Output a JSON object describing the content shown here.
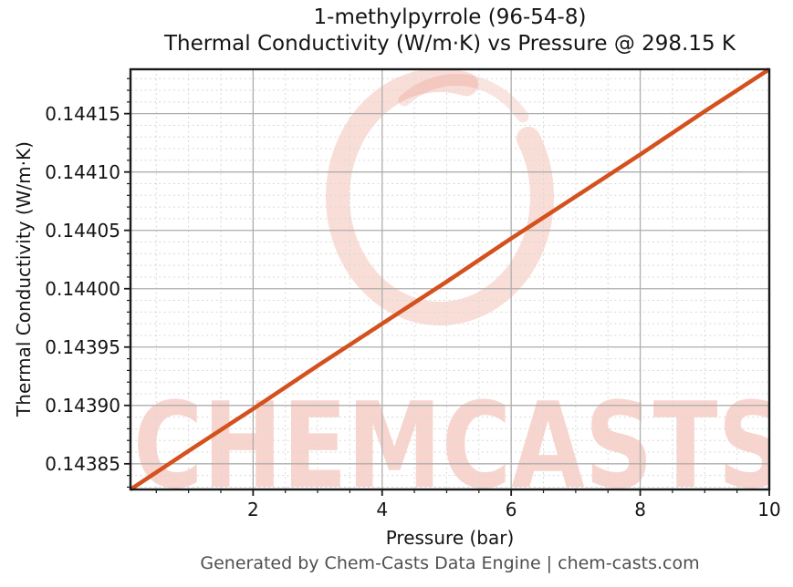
{
  "header": {
    "title_line1": "1-methylpyrrole (96-54-8)",
    "title_line2": "Thermal Conductivity (W/m·K) vs Pressure @ 298.15 K"
  },
  "footer": {
    "attribution": "Generated by Chem-Casts Data Engine | chem-casts.com"
  },
  "watermark": {
    "text": "CHEMCASTS",
    "logo": "brush-circle-icon",
    "color": "#f7d3c9"
  },
  "chart_data": {
    "type": "line",
    "title": "1-methylpyrrole (96-54-8)",
    "subtitle": "Thermal Conductivity (W/m·K) vs Pressure @ 298.15 K",
    "substance": "1-methylpyrrole",
    "cas_number": "96-54-8",
    "temperature_K": 298.15,
    "xlabel": "Pressure (bar)",
    "ylabel": "Thermal Conductivity (W/m·K)",
    "xlim": [
      0.1,
      10
    ],
    "ylim": [
      0.143828,
      0.144188
    ],
    "x_ticks": [
      2,
      4,
      6,
      8,
      10
    ],
    "x_tick_labels": [
      "2",
      "4",
      "6",
      "8",
      "10"
    ],
    "x_minor_step": 0.5,
    "y_ticks": [
      0.14385,
      0.1439,
      0.14395,
      0.144,
      0.14405,
      0.1441,
      0.14415
    ],
    "y_tick_labels": [
      "0.14385",
      "0.14390",
      "0.14395",
      "0.14400",
      "0.14405",
      "0.14410",
      "0.14415"
    ],
    "y_minor_step": 1e-05,
    "grid": true,
    "legend": false,
    "line_color": "#d4511e",
    "axis_color": "#1a1a1a",
    "series": [
      {
        "name": "Thermal Conductivity (W/m·K)",
        "x": [
          0.1,
          1,
          2,
          3,
          4,
          5,
          6,
          7,
          8,
          9,
          10
        ],
        "y": [
          0.143828,
          0.143861,
          0.143897,
          0.143934,
          0.14397,
          0.144006,
          0.144043,
          0.144079,
          0.144115,
          0.144152,
          0.144188
        ]
      }
    ]
  }
}
